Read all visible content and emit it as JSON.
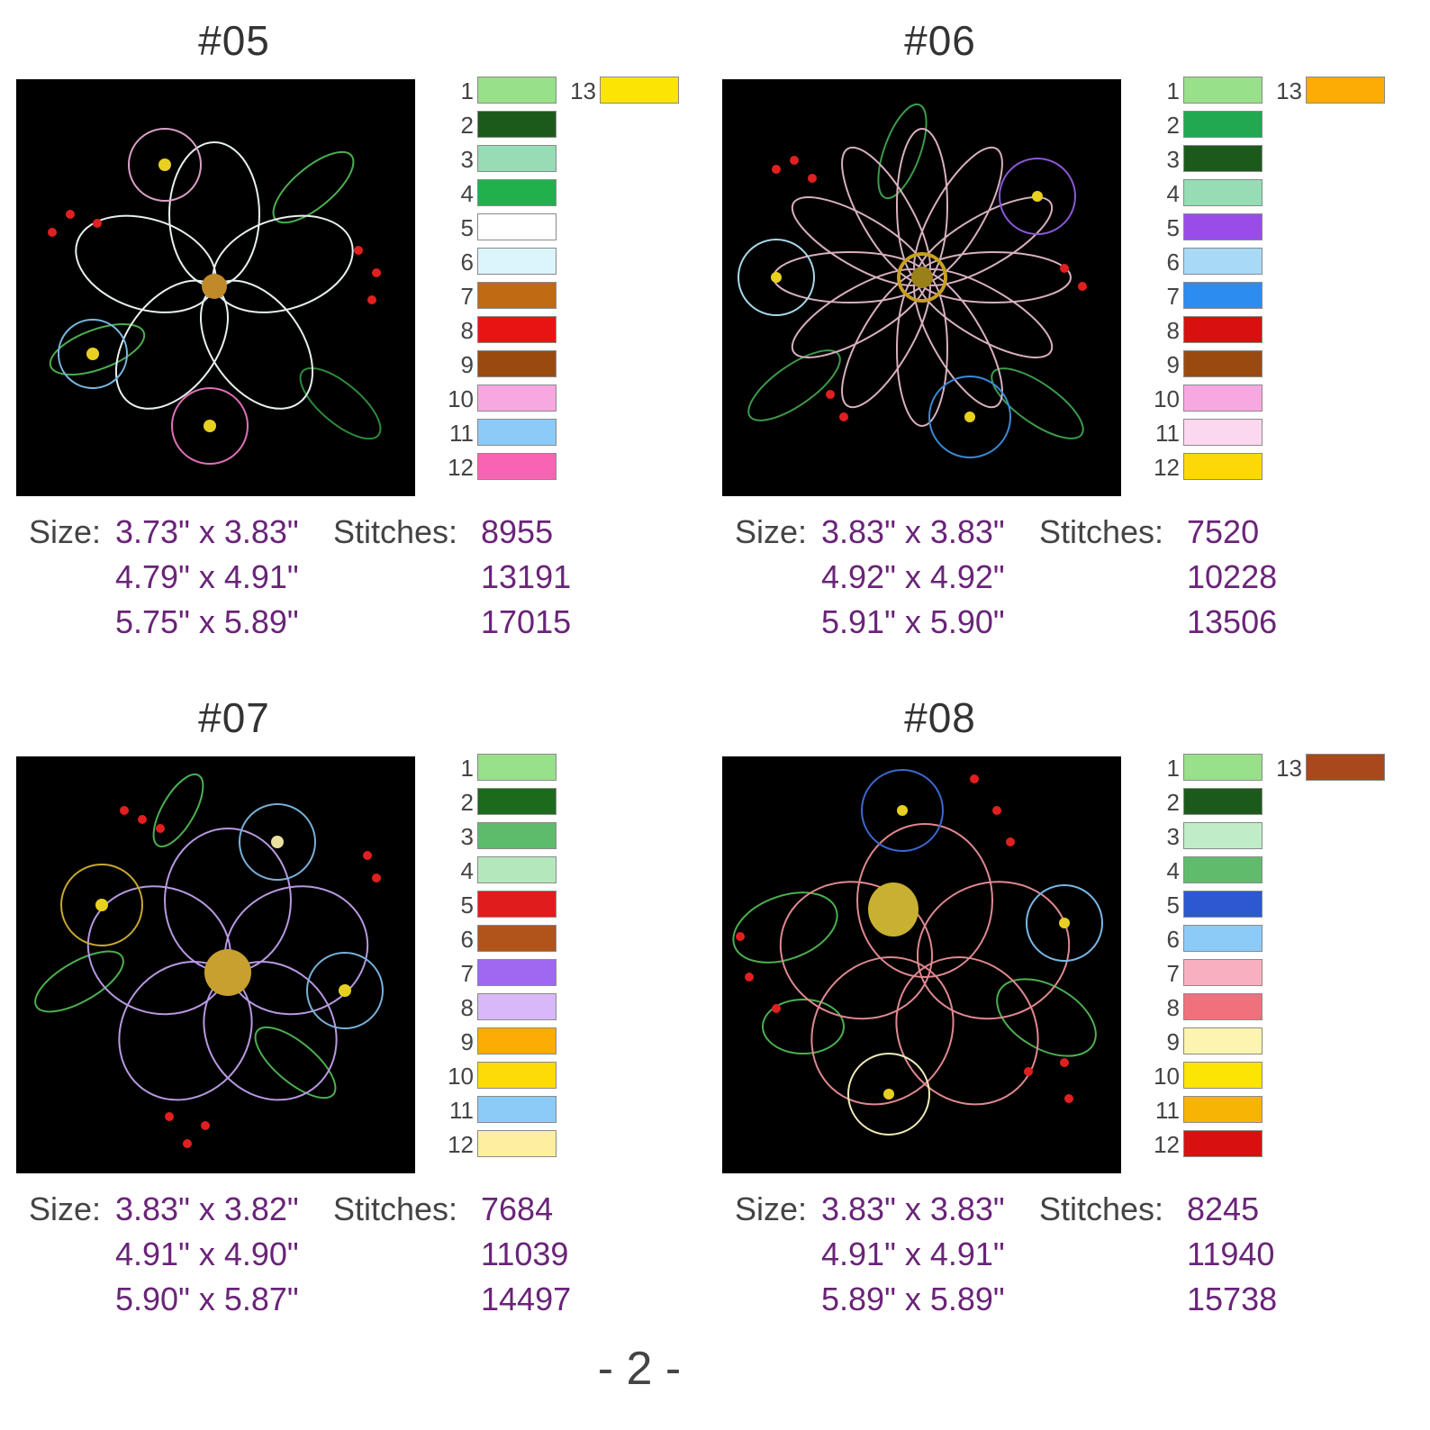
{
  "page_number": "- 2 -",
  "labels": {
    "size": "Size:",
    "stitches": "Stitches:"
  },
  "designs": [
    {
      "title": "#05",
      "palette": [
        {
          "n": "1",
          "color": "#98e08a"
        },
        {
          "n": "2",
          "color": "#1c5a1c"
        },
        {
          "n": "3",
          "color": "#96dcb4"
        },
        {
          "n": "4",
          "color": "#22b04c"
        },
        {
          "n": "5",
          "color": "#ffffff"
        },
        {
          "n": "6",
          "color": "#dcf4fc"
        },
        {
          "n": "7",
          "color": "#c06a14"
        },
        {
          "n": "8",
          "color": "#e81414"
        },
        {
          "n": "9",
          "color": "#9a4a10"
        },
        {
          "n": "10",
          "color": "#f8a8e0"
        },
        {
          "n": "11",
          "color": "#8ccaf8"
        },
        {
          "n": "12",
          "color": "#f864b4"
        },
        {
          "n": "13",
          "color": "#fce404"
        }
      ],
      "sizes": [
        "3.73\" x 3.83\"",
        "4.79\" x 4.91\"",
        "5.75\" x 5.89\""
      ],
      "stitches": [
        "8955",
        "13191",
        "17015"
      ]
    },
    {
      "title": "#06",
      "palette": [
        {
          "n": "1",
          "color": "#98e08a"
        },
        {
          "n": "2",
          "color": "#22a850"
        },
        {
          "n": "3",
          "color": "#1c5a1c"
        },
        {
          "n": "4",
          "color": "#96dcb4"
        },
        {
          "n": "5",
          "color": "#9a4ce8"
        },
        {
          "n": "6",
          "color": "#a8daf8"
        },
        {
          "n": "7",
          "color": "#2c8cf0"
        },
        {
          "n": "8",
          "color": "#d81010"
        },
        {
          "n": "9",
          "color": "#9a4a10"
        },
        {
          "n": "10",
          "color": "#f8a8e0"
        },
        {
          "n": "11",
          "color": "#fcd8f0"
        },
        {
          "n": "12",
          "color": "#fcd808"
        },
        {
          "n": "13",
          "color": "#fcac04"
        }
      ],
      "sizes": [
        "3.83\" x 3.83\"",
        "4.92\" x 4.92\"",
        "5.91\" x 5.90\""
      ],
      "stitches": [
        "7520",
        "10228",
        "13506"
      ]
    },
    {
      "title": "#07",
      "palette": [
        {
          "n": "1",
          "color": "#98e08a"
        },
        {
          "n": "2",
          "color": "#1c6a1c"
        },
        {
          "n": "3",
          "color": "#5cbc6c"
        },
        {
          "n": "4",
          "color": "#b4e8bc"
        },
        {
          "n": "5",
          "color": "#e01c1c"
        },
        {
          "n": "6",
          "color": "#b0541c"
        },
        {
          "n": "7",
          "color": "#a068f0"
        },
        {
          "n": "8",
          "color": "#d8b8f8"
        },
        {
          "n": "9",
          "color": "#fcac04"
        },
        {
          "n": "10",
          "color": "#fcdc04"
        },
        {
          "n": "11",
          "color": "#8ccaf8"
        },
        {
          "n": "12",
          "color": "#fcf0a0"
        }
      ],
      "sizes": [
        "3.83\" x 3.82\"",
        "4.91\" x 4.90\"",
        "5.90\" x 5.87\""
      ],
      "stitches": [
        "7684",
        "11039",
        "14497"
      ]
    },
    {
      "title": "#08",
      "palette": [
        {
          "n": "1",
          "color": "#98e08a"
        },
        {
          "n": "2",
          "color": "#1c5a1c"
        },
        {
          "n": "3",
          "color": "#c0ecc8"
        },
        {
          "n": "4",
          "color": "#60bc6c"
        },
        {
          "n": "5",
          "color": "#2c58d0"
        },
        {
          "n": "6",
          "color": "#8ccaf8"
        },
        {
          "n": "7",
          "color": "#f8b0c0"
        },
        {
          "n": "8",
          "color": "#f0707c"
        },
        {
          "n": "9",
          "color": "#fcf4b0"
        },
        {
          "n": "10",
          "color": "#fce404"
        },
        {
          "n": "11",
          "color": "#f8b404"
        },
        {
          "n": "12",
          "color": "#d81010"
        },
        {
          "n": "13",
          "color": "#a8481c"
        }
      ],
      "sizes": [
        "3.83\" x 3.83\"",
        "4.91\" x 4.91\"",
        "5.89\" x 5.89\""
      ],
      "stitches": [
        "8245",
        "11940",
        "15738"
      ]
    }
  ]
}
